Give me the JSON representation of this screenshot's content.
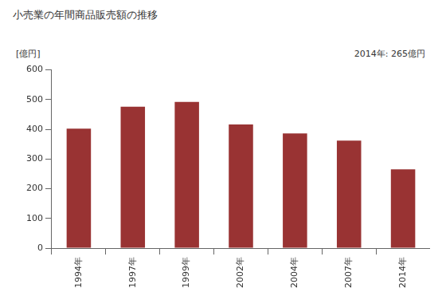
{
  "chart_data": {
    "type": "bar",
    "title": "小売業の年間商品販売額の推移",
    "ylabel": "[億円]",
    "annotations": [
      "2014年: 265億円"
    ],
    "categories": [
      "1994年",
      "1997年",
      "1999年",
      "2002年",
      "2004年",
      "2007年",
      "2014年"
    ],
    "values": [
      402,
      476,
      492,
      416,
      386,
      362,
      265
    ],
    "color": "#993333",
    "ylim": [
      0,
      600
    ],
    "yticks": [
      0,
      100,
      200,
      300,
      400,
      500,
      600
    ],
    "grid": false
  }
}
